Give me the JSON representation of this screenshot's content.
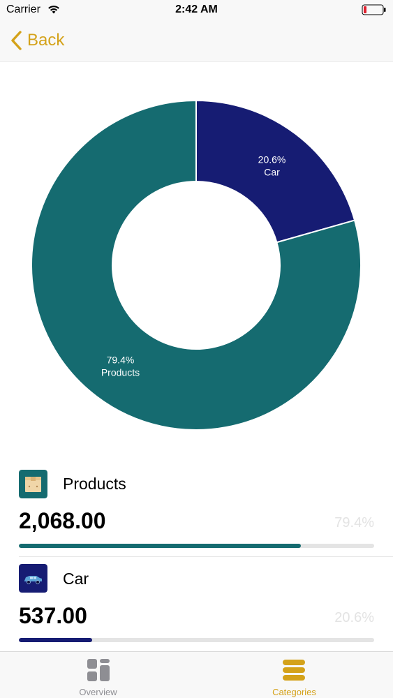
{
  "status_bar": {
    "carrier": "Carrier",
    "time": "2:42 AM"
  },
  "nav": {
    "back_label": "Back"
  },
  "colors": {
    "accent": "#d4a21a",
    "products": "#156b70",
    "car": "#161c73",
    "inactive_tab": "#8e8e93"
  },
  "chart_data": {
    "type": "pie",
    "title": "",
    "slices": [
      {
        "label": "Car",
        "value": 20.6,
        "display": "20.6%",
        "color": "#161c73"
      },
      {
        "label": "Products",
        "value": 79.4,
        "display": "79.4%",
        "color": "#156b70"
      }
    ]
  },
  "categories": [
    {
      "name": "Products",
      "amount": "2,068.00",
      "percent_label": "79.4%",
      "percent": 79.4,
      "color": "#156b70",
      "icon": "box-icon"
    },
    {
      "name": "Car",
      "amount": "537.00",
      "percent_label": "20.6%",
      "percent": 20.6,
      "color": "#161c73",
      "icon": "car-icon"
    }
  ],
  "tabs": [
    {
      "label": "Overview",
      "icon": "grid-icon",
      "active": false
    },
    {
      "label": "Categories",
      "icon": "list-icon",
      "active": true
    }
  ]
}
